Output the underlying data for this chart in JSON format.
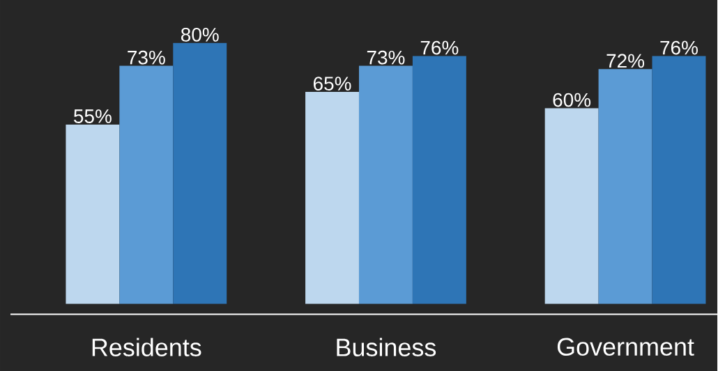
{
  "chart_data": {
    "type": "bar",
    "categories": [
      "Residents",
      "Business",
      "Government"
    ],
    "series": [
      {
        "color": "#bdd7ee",
        "values": [
          55,
          65,
          60
        ],
        "value_labels": [
          "55%",
          "65%",
          "60%"
        ]
      },
      {
        "color": "#5b9bd5",
        "values": [
          73,
          73,
          72
        ],
        "value_labels": [
          "73%",
          "73%",
          "72%"
        ]
      },
      {
        "color": "#2e75b6",
        "values": [
          80,
          76,
          76
        ],
        "value_labels": [
          "80%",
          "76%",
          "76%"
        ]
      }
    ]
  }
}
